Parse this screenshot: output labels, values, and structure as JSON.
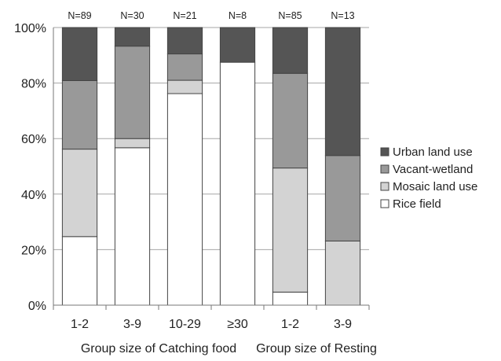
{
  "chart_data": {
    "type": "bar",
    "stacked": true,
    "categories": [
      "1-2",
      "3-9",
      "10-29",
      "≥30",
      "1-2",
      "3-9"
    ],
    "n_labels": [
      "N=89",
      "N=30",
      "N=21",
      "N=8",
      "N=85",
      "N=13"
    ],
    "group_labels": [
      "Group size of Catching food",
      "Group size of Resting"
    ],
    "groups": [
      [
        0,
        1,
        2,
        3
      ],
      [
        4,
        5
      ]
    ],
    "series": [
      {
        "name": "Rice field",
        "color": "#ffffff",
        "values": [
          24.7,
          56.7,
          76.2,
          87.5,
          4.7,
          0
        ]
      },
      {
        "name": "Mosaic land use",
        "color": "#d3d3d3",
        "values": [
          31.5,
          3.3,
          4.8,
          0,
          44.7,
          23.1
        ]
      },
      {
        "name": "Vacant-wetland",
        "color": "#999999",
        "values": [
          24.7,
          33.3,
          9.5,
          0,
          34.1,
          30.8
        ]
      },
      {
        "name": "Urban land use",
        "color": "#555555",
        "values": [
          19.1,
          6.7,
          9.5,
          12.5,
          16.5,
          46.1
        ]
      }
    ],
    "y_ticks": [
      "0%",
      "20%",
      "40%",
      "60%",
      "80%",
      "100%"
    ],
    "ylim": [
      0,
      100
    ],
    "legend_order": [
      "Urban land use",
      "Vacant-wetland",
      "Mosaic land use",
      "Rice field"
    ],
    "legend_position": "right",
    "grid": true
  }
}
